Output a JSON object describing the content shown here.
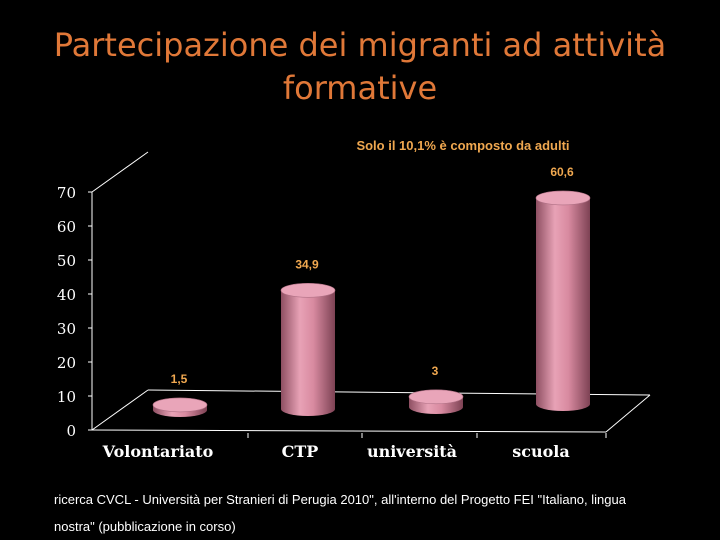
{
  "slide": {
    "title": "Partecipazione dei migranti ad attività formative",
    "footer": "ricerca CVCL - Università per Stranieri di Perugia 2010\", all'interno del Progetto FEI \"Italiano, lingua nostra\" (pubblicazione in corso)"
  },
  "colors": {
    "title": "#e07838",
    "annotation": "#f0a850",
    "bar": "#d88aa0",
    "axis": "#ffffff",
    "background": "#000000"
  },
  "chart_data": {
    "type": "bar",
    "annotation": "Solo il 10,1% è composto da adulti",
    "categories": [
      "Volontariato",
      "CTP",
      "università",
      "scuola"
    ],
    "values": [
      1.5,
      34.9,
      3,
      60.6
    ],
    "data_labels": [
      "1,5",
      "34,9",
      "3",
      "60,6"
    ],
    "yticks": [
      "0",
      "10",
      "20",
      "30",
      "40",
      "50",
      "60",
      "70"
    ],
    "ylim": [
      0,
      70
    ],
    "grid": false,
    "legend": "none",
    "style": "3d-cylinder"
  }
}
